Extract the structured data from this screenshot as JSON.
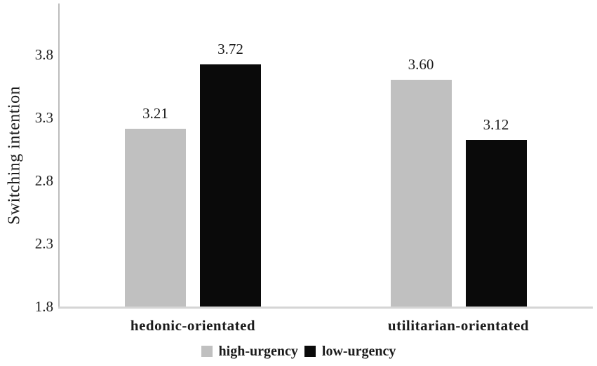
{
  "chart_data": {
    "type": "bar",
    "title": "",
    "xlabel": "",
    "ylabel": "Switching intention",
    "categories": [
      "hedonic-orientated",
      "utilitarian-orientated"
    ],
    "series": [
      {
        "name": "high-urgency",
        "color": "#c0c0c0",
        "values": [
          3.21,
          3.6
        ],
        "labels": [
          "3.21",
          "3.60"
        ]
      },
      {
        "name": "low-urgency",
        "color": "#0a0a0a",
        "values": [
          3.72,
          3.12
        ],
        "labels": [
          "3.72",
          "3.12"
        ]
      }
    ],
    "yticks": [
      "3.8",
      "3.3",
      "2.8",
      "2.3",
      "1.8"
    ],
    "ylim": [
      1.8,
      4.2
    ],
    "grid": false,
    "legend_position": "bottom",
    "colors": {
      "background": "#ffffff",
      "text": "#1b1b1b",
      "axis_vertical": "#bdbdbd",
      "axis_horizontal": "#d5d5d5"
    }
  }
}
